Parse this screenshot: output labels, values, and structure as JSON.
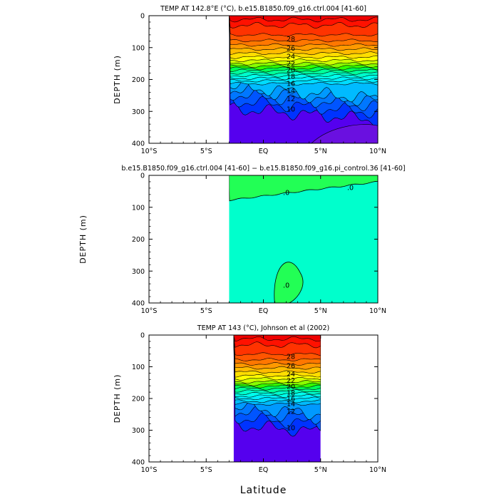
{
  "chart_data": [
    {
      "type": "contour",
      "title": "TEMP AT 142.8°E (°C), b.e15.B1850.f09_g16.ctrl.004 [41-60]",
      "ylabel": "DEPTH (m)",
      "xlabel": "",
      "x_ticks": [
        "10°S",
        "5°S",
        "EQ",
        "5°N",
        "10°N"
      ],
      "y_ticks": [
        "0",
        "100",
        "200",
        "300",
        "400"
      ],
      "xlim": [
        -10,
        10
      ],
      "ylim": [
        400,
        0
      ],
      "data_extent_x": [
        -3,
        10
      ],
      "contour_interval": 1,
      "contour_depths": {
        "28": 30,
        "27": 60,
        "26": 78,
        "25": 92,
        "24": 105,
        "23": 118,
        "22": 130,
        "21": 140,
        "20": 150,
        "19": 158,
        "18": 165,
        "17": 172,
        "16": 180,
        "15": 188,
        "14": 196,
        "13": 204,
        "12": 213,
        "11": 222,
        "10": 232,
        "9": 246,
        "8": 266,
        "7": 290
      },
      "contour_labels": [
        {
          "value": "28",
          "x": 2.4,
          "depth": 80
        },
        {
          "value": "26",
          "x": 2.4,
          "depth": 110
        },
        {
          "value": "24",
          "x": 2.4,
          "depth": 135
        },
        {
          "value": "22",
          "x": 2.4,
          "depth": 158
        },
        {
          "value": "20",
          "x": 2.4,
          "depth": 178
        },
        {
          "value": "18",
          "x": 2.4,
          "depth": 198
        },
        {
          "value": "16",
          "x": 2.4,
          "depth": 220
        },
        {
          "value": "14",
          "x": 2.4,
          "depth": 243
        },
        {
          "value": "12",
          "x": 2.4,
          "depth": 268
        },
        {
          "value": "10",
          "x": 2.4,
          "depth": 300
        }
      ],
      "notes": "Temperature (°C) vs latitude and depth; warm surface > 28, colder < 8 at depth"
    },
    {
      "type": "contour",
      "title": "b.e15.B1850.f09_g16.ctrl.004 [41-60] − b.e15.B1850.f09_g16.pi_control.36 [41-60]",
      "ylabel": "DEPTH (m)",
      "xlabel": "",
      "x_ticks": [
        "10°S",
        "5°S",
        "EQ",
        "5°N",
        "10°N"
      ],
      "y_ticks": [
        "0",
        "100",
        "200",
        "300",
        "400"
      ],
      "xlim": [
        -10,
        10
      ],
      "ylim": [
        400,
        0
      ],
      "data_extent_x": [
        -3,
        10
      ],
      "contour_labels": [
        {
          "value": ".0",
          "x": 2.0,
          "depth": 62
        },
        {
          "value": ".0",
          "x": 7.6,
          "depth": 46
        },
        {
          "value": ".0",
          "x": 2.0,
          "depth": 352
        }
      ],
      "notes": "Difference field near zero; small positive region near surface and at depth near 2°N"
    },
    {
      "type": "contour",
      "title": "TEMP AT 143 (°C), Johnson et al (2002)",
      "ylabel": "DEPTH (m)",
      "xlabel": "Latitude",
      "x_ticks": [
        "10°S",
        "5°S",
        "EQ",
        "5°N",
        "10°N"
      ],
      "y_ticks": [
        "0",
        "100",
        "200",
        "300",
        "400"
      ],
      "xlim": [
        -10,
        10
      ],
      "ylim": [
        400,
        0
      ],
      "data_extent_x": [
        -2.6,
        5
      ],
      "contour_labels": [
        {
          "value": "28",
          "x": 2.4,
          "depth": 75
        },
        {
          "value": "26",
          "x": 2.4,
          "depth": 105
        },
        {
          "value": "24",
          "x": 2.4,
          "depth": 130
        },
        {
          "value": "22",
          "x": 2.4,
          "depth": 150
        },
        {
          "value": "20",
          "x": 2.4,
          "depth": 170
        },
        {
          "value": "18",
          "x": 2.4,
          "depth": 190
        },
        {
          "value": "16",
          "x": 2.4,
          "depth": 208
        },
        {
          "value": "14",
          "x": 2.4,
          "depth": 225
        },
        {
          "value": "12",
          "x": 2.4,
          "depth": 248
        },
        {
          "value": "10",
          "x": 2.4,
          "depth": 300
        }
      ],
      "notes": "Observed temperature section from Johnson et al (2002)"
    }
  ],
  "colors": {
    "palette": [
      "#7a00d8",
      "#5500ee",
      "#0033ff",
      "#0055ff",
      "#0077ff",
      "#0099ff",
      "#00bbff",
      "#00ddff",
      "#00eeff",
      "#00ffee",
      "#00ffcc",
      "#00ff99",
      "#00ff55",
      "#33ff00",
      "#88ff00",
      "#ccff00",
      "#ffff00",
      "#ffdd00",
      "#ffbb00",
      "#ff9900",
      "#ff7700",
      "#ff5500",
      "#ff3300",
      "#ff1100",
      "#ee0000"
    ],
    "diff_zero": "#00ffcc",
    "diff_pos": "#22ff55"
  }
}
